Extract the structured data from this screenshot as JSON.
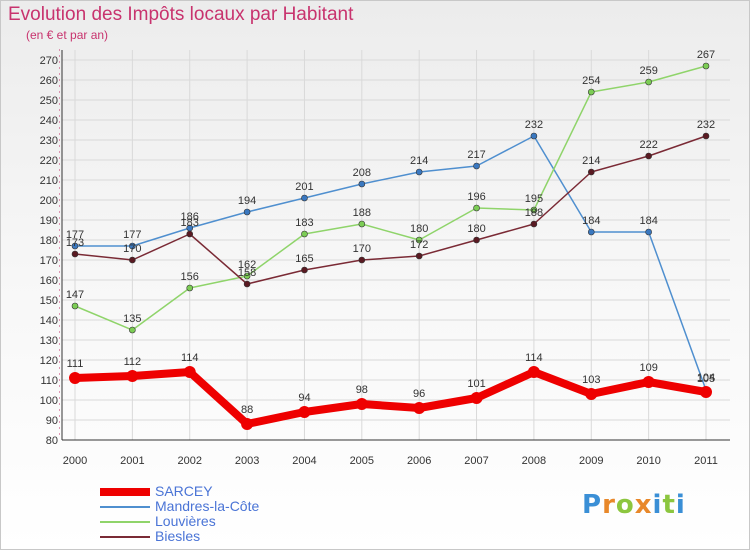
{
  "header": {
    "title": "Evolution des Impôts locaux par Habitant",
    "subtitle": "(en € et par an)"
  },
  "chart_data": {
    "type": "line",
    "title": "Evolution des Impôts locaux par Habitant",
    "subtitle": "(en € et par an)",
    "xlabel": "",
    "ylabel": "",
    "categories": [
      "2000",
      "2001",
      "2002",
      "2003",
      "2004",
      "2005",
      "2006",
      "2007",
      "2008",
      "2009",
      "2010",
      "2011"
    ],
    "ylim": [
      80,
      270
    ],
    "yticks": [
      80,
      90,
      100,
      110,
      120,
      130,
      140,
      150,
      160,
      170,
      180,
      190,
      200,
      210,
      220,
      230,
      240,
      250,
      260,
      270
    ],
    "grid": true,
    "legend_position": "bottom-left",
    "series": [
      {
        "name": "Mandres-la-Côte",
        "color": "#4f8fcf",
        "marker_color": "#3a78c0",
        "values": [
          177,
          177,
          186,
          194,
          201,
          208,
          214,
          217,
          232,
          184,
          184,
          105
        ]
      },
      {
        "name": "Louvières",
        "color": "#8fd46a",
        "marker_color": "#7ccd55",
        "values": [
          147,
          135,
          156,
          162,
          183,
          188,
          180,
          196,
          195,
          254,
          259,
          267
        ]
      },
      {
        "name": "Biesles",
        "color": "#7a2a35",
        "marker_color": "#5a1a22",
        "values": [
          173,
          170,
          183,
          158,
          165,
          170,
          172,
          180,
          188,
          214,
          222,
          232
        ]
      },
      {
        "name": "SARCEY",
        "color": "#ee0000",
        "marker_color": "#ee0000",
        "thick": true,
        "values": [
          111,
          112,
          114,
          88,
          94,
          98,
          96,
          101,
          114,
          103,
          109,
          104
        ]
      }
    ],
    "legend": [
      "SARCEY",
      "Mandres-la-Côte",
      "Louvières",
      "Biesles"
    ]
  },
  "brand": {
    "letters": [
      "P",
      "r",
      "o",
      "x",
      "i",
      "t",
      "i"
    ],
    "colors": [
      "#3a8fd6",
      "#e8882a",
      "#8cc63f",
      "#e8882a",
      "#3a8fd6",
      "#8cc63f",
      "#3a8fd6"
    ]
  }
}
